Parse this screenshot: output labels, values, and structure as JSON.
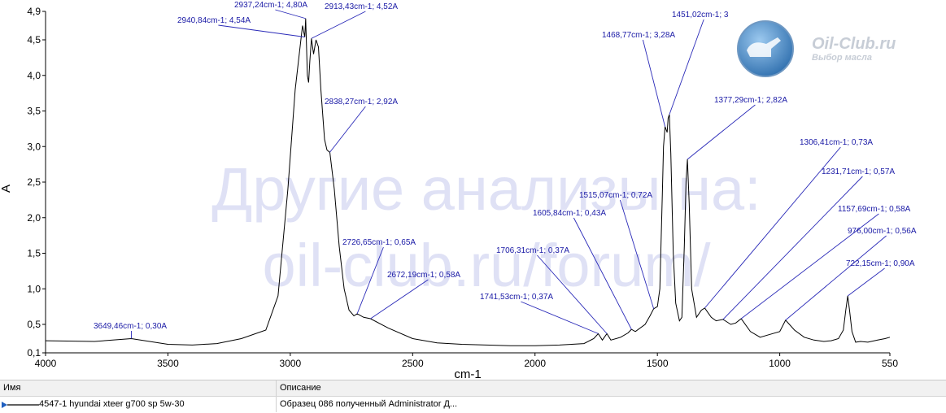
{
  "chart_data": {
    "type": "line",
    "xlabel": "cm-1",
    "ylabel": "A",
    "xlim": [
      4000,
      550
    ],
    "ylim": [
      0.1,
      4.9
    ],
    "x_ticks": [
      "4000",
      "3500",
      "3000",
      "2500",
      "2000",
      "1500",
      "1000",
      "550"
    ],
    "y_ticks": [
      "4,9",
      "4,5",
      "4,0",
      "3,5",
      "3,0",
      "2,5",
      "2,0",
      "1,5",
      "1,0",
      "0,5",
      "0,1"
    ],
    "series": [
      {
        "name": "4547-1 hyundai xteer g700 sp 5w-30",
        "color": "#000000",
        "points": [
          [
            4000,
            0.27
          ],
          [
            3800,
            0.26
          ],
          [
            3649.46,
            0.3
          ],
          [
            3500,
            0.22
          ],
          [
            3400,
            0.21
          ],
          [
            3300,
            0.23
          ],
          [
            3200,
            0.3
          ],
          [
            3100,
            0.42
          ],
          [
            3050,
            0.9
          ],
          [
            3010,
            2.4
          ],
          [
            2980,
            3.8
          ],
          [
            2960,
            4.4
          ],
          [
            2950,
            4.7
          ],
          [
            2940.84,
            4.54
          ],
          [
            2937.24,
            4.8
          ],
          [
            2930,
            4.0
          ],
          [
            2925,
            3.9
          ],
          [
            2920,
            4.2
          ],
          [
            2913.43,
            4.52
          ],
          [
            2905,
            4.3
          ],
          [
            2895,
            4.5
          ],
          [
            2885,
            4.4
          ],
          [
            2875,
            3.8
          ],
          [
            2860,
            3.1
          ],
          [
            2850,
            2.95
          ],
          [
            2838.27,
            2.92
          ],
          [
            2820,
            2.4
          ],
          [
            2800,
            1.6
          ],
          [
            2780,
            1.0
          ],
          [
            2760,
            0.7
          ],
          [
            2740,
            0.62
          ],
          [
            2726.65,
            0.65
          ],
          [
            2700,
            0.6
          ],
          [
            2672.19,
            0.58
          ],
          [
            2600,
            0.45
          ],
          [
            2500,
            0.3
          ],
          [
            2400,
            0.24
          ],
          [
            2300,
            0.22
          ],
          [
            2200,
            0.21
          ],
          [
            2100,
            0.2
          ],
          [
            2000,
            0.2
          ],
          [
            1900,
            0.21
          ],
          [
            1800,
            0.23
          ],
          [
            1760,
            0.3
          ],
          [
            1741.53,
            0.37
          ],
          [
            1725,
            0.28
          ],
          [
            1706.31,
            0.37
          ],
          [
            1690,
            0.28
          ],
          [
            1650,
            0.32
          ],
          [
            1620,
            0.38
          ],
          [
            1605.84,
            0.43
          ],
          [
            1590,
            0.4
          ],
          [
            1550,
            0.5
          ],
          [
            1530,
            0.62
          ],
          [
            1515.07,
            0.72
          ],
          [
            1500,
            0.75
          ],
          [
            1490,
            1.0
          ],
          [
            1480,
            2.3
          ],
          [
            1475,
            3.0
          ],
          [
            1468.77,
            3.28
          ],
          [
            1460,
            3.2
          ],
          [
            1456,
            3.4
          ],
          [
            1451.02,
            3.45
          ],
          [
            1445,
            2.9
          ],
          [
            1435,
            1.5
          ],
          [
            1425,
            0.8
          ],
          [
            1410,
            0.55
          ],
          [
            1400,
            0.6
          ],
          [
            1390,
            1.6
          ],
          [
            1383,
            2.5
          ],
          [
            1377.29,
            2.82
          ],
          [
            1370,
            2.2
          ],
          [
            1360,
            1.0
          ],
          [
            1340,
            0.6
          ],
          [
            1320,
            0.7
          ],
          [
            1306.41,
            0.73
          ],
          [
            1280,
            0.6
          ],
          [
            1260,
            0.55
          ],
          [
            1231.71,
            0.57
          ],
          [
            1200,
            0.5
          ],
          [
            1180,
            0.52
          ],
          [
            1157.69,
            0.58
          ],
          [
            1120,
            0.4
          ],
          [
            1080,
            0.32
          ],
          [
            1040,
            0.36
          ],
          [
            1000,
            0.4
          ],
          [
            976.0,
            0.56
          ],
          [
            940,
            0.42
          ],
          [
            900,
            0.32
          ],
          [
            860,
            0.28
          ],
          [
            820,
            0.26
          ],
          [
            790,
            0.27
          ],
          [
            760,
            0.3
          ],
          [
            740,
            0.42
          ],
          [
            730,
            0.7
          ],
          [
            722.15,
            0.9
          ],
          [
            715,
            0.7
          ],
          [
            705,
            0.4
          ],
          [
            690,
            0.25
          ],
          [
            670,
            0.26
          ],
          [
            640,
            0.25
          ],
          [
            600,
            0.28
          ],
          [
            570,
            0.3
          ],
          [
            550,
            0.32
          ]
        ]
      }
    ],
    "annotations": [
      {
        "label": "3649,46cm-1; 0,30A",
        "x": 3649.46,
        "y": 0.3
      },
      {
        "label": "2940,84cm-1; 4,54A",
        "x": 2940.84,
        "y": 4.54
      },
      {
        "label": "2937,24cm-1; 4,80A",
        "x": 2937.24,
        "y": 4.8
      },
      {
        "label": "2913,43cm-1; 4,52A",
        "x": 2913.43,
        "y": 4.52
      },
      {
        "label": "2838,27cm-1; 2,92A",
        "x": 2838.27,
        "y": 2.92
      },
      {
        "label": "2726,65cm-1; 0,65A",
        "x": 2726.65,
        "y": 0.65
      },
      {
        "label": "2672,19cm-1; 0,58A",
        "x": 2672.19,
        "y": 0.58
      },
      {
        "label": "1741,53cm-1; 0,37A",
        "x": 1741.53,
        "y": 0.37
      },
      {
        "label": "1706,31cm-1; 0,37A",
        "x": 1706.31,
        "y": 0.37
      },
      {
        "label": "1605,84cm-1; 0,43A",
        "x": 1605.84,
        "y": 0.43
      },
      {
        "label": "1515,07cm-1; 0,72A",
        "x": 1515.07,
        "y": 0.72
      },
      {
        "label": "1468,77cm-1; 3,28A",
        "x": 1468.77,
        "y": 3.28
      },
      {
        "label": "1451,02cm-1; 3",
        "x": 1451.02,
        "y": 3.45
      },
      {
        "label": "1377,29cm-1; 2,82A",
        "x": 1377.29,
        "y": 2.82
      },
      {
        "label": "1306,41cm-1; 0,73A",
        "x": 1306.41,
        "y": 0.73
      },
      {
        "label": "1231,71cm-1; 0,57A",
        "x": 1231.71,
        "y": 0.57
      },
      {
        "label": "1157,69cm-1; 0,58A",
        "x": 1157.69,
        "y": 0.58
      },
      {
        "label": "976,00cm-1; 0,56A",
        "x": 976.0,
        "y": 0.56
      },
      {
        "label": "722,15cm-1; 0,90A",
        "x": 722.15,
        "y": 0.9
      }
    ],
    "watermark": [
      "Другие анализы на:",
      "oil-club.ru/forum/"
    ],
    "brand": {
      "name": "Oil-Club.ru",
      "tagline": "Выбор масла"
    }
  },
  "legend": {
    "headers": [
      "Имя",
      "Описание"
    ],
    "rows": [
      {
        "name": "4547-1 hyundai xteer g700 sp 5w-30",
        "description": "Образец 086 полученный Administrator Д..."
      }
    ]
  }
}
